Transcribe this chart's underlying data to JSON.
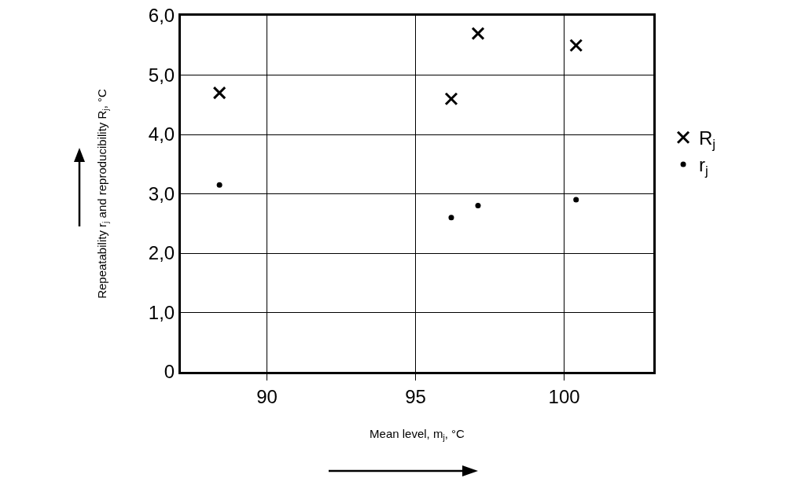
{
  "chart_data": {
    "type": "scatter",
    "xlabel": "Mean level, m$_{j}$, °C",
    "ylabel": "Repeatability r$_{j}$ and reproducibility R$_{j}$, °C",
    "x": [
      88.4,
      96.2,
      97.1,
      100.4
    ],
    "series": [
      {
        "name": "R$_{j}$",
        "color": "#000000",
        "marker": "cross",
        "values": [
          4.7,
          4.6,
          5.7,
          5.5
        ]
      },
      {
        "name": "r$_{j}$",
        "color": "#000000",
        "marker": "circle",
        "values": [
          3.15,
          2.6,
          2.8,
          2.9
        ]
      }
    ],
    "xlim": [
      87.1,
      103
    ],
    "xticks": [
      90,
      95,
      100
    ],
    "ylim": [
      0,
      6
    ],
    "yticks": [
      0,
      {
        "value": 1,
        "label": "1,0"
      },
      {
        "value": 2,
        "label": "2,0"
      },
      {
        "value": 3,
        "label": "3,0"
      },
      {
        "value": 4,
        "label": "4,0"
      },
      {
        "value": 5,
        "label": "5,0"
      },
      {
        "value": 6,
        "label": "6,0"
      }
    ],
    "grid": true,
    "legend": "right"
  }
}
